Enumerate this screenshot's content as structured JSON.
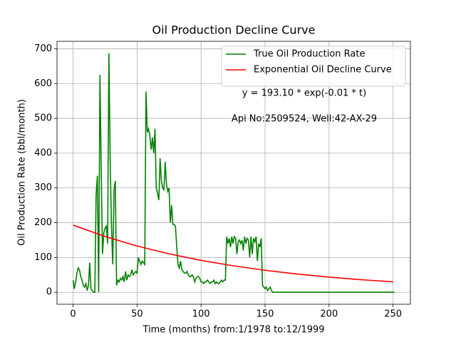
{
  "chart_data": {
    "type": "line",
    "title": "Oil Production Decline Curve",
    "xlabel": "Time (months) from:1/1978 to:12/1999",
    "ylabel": "Oil Production Rate (bbl/month)",
    "annotations": [
      "y = 193.10 * exp(-0.01 * t)",
      "Api No:2509524, Well:42-AX-29"
    ],
    "xlim": [
      -12.55,
      263.55
    ],
    "xticks": [
      0,
      50,
      100,
      150,
      200,
      250
    ],
    "ylim": [
      -34.35,
      721.35
    ],
    "yticks": [
      0,
      100,
      200,
      300,
      400,
      500,
      600,
      700
    ],
    "grid": true,
    "legend": "upper right",
    "series": [
      {
        "name": "True Oil Production Rate",
        "color": "#008000",
        "x": [
          0,
          1,
          2,
          3,
          4,
          5,
          6,
          7,
          8,
          9,
          10,
          11,
          12,
          13,
          14,
          15,
          16,
          17,
          18,
          19,
          20,
          21,
          22,
          23,
          24,
          25,
          26,
          27,
          28,
          29,
          30,
          31,
          32,
          33,
          34,
          35,
          36,
          37,
          38,
          39,
          40,
          41,
          42,
          43,
          44,
          45,
          46,
          47,
          48,
          49,
          50,
          51,
          52,
          53,
          54,
          55,
          56,
          57,
          58,
          59,
          60,
          61,
          62,
          63,
          64,
          65,
          66,
          67,
          68,
          69,
          70,
          71,
          72,
          73,
          74,
          75,
          76,
          77,
          78,
          79,
          80,
          81,
          82,
          83,
          84,
          85,
          86,
          87,
          88,
          89,
          90,
          91,
          92,
          93,
          94,
          95,
          96,
          97,
          98,
          99,
          100,
          101,
          102,
          103,
          104,
          105,
          106,
          107,
          108,
          109,
          110,
          111,
          112,
          113,
          114,
          115,
          116,
          117,
          118,
          119,
          120,
          121,
          122,
          123,
          124,
          125,
          126,
          127,
          128,
          129,
          130,
          131,
          132,
          133,
          134,
          135,
          136,
          137,
          138,
          139,
          140,
          141,
          142,
          143,
          144,
          145,
          146,
          147,
          148,
          149,
          150,
          151,
          152,
          153,
          154,
          155,
          156,
          251
        ],
        "values": [
          35,
          10,
          30,
          55,
          70,
          65,
          45,
          35,
          20,
          15,
          25,
          5,
          20,
          85,
          10,
          5,
          0,
          0,
          280,
          335,
          0,
          625,
          350,
          110,
          170,
          185,
          190,
          140,
          687,
          380,
          190,
          80,
          295,
          320,
          20,
          35,
          30,
          40,
          35,
          45,
          30,
          60,
          35,
          50,
          45,
          50,
          65,
          50,
          55,
          60,
          55,
          100,
          90,
          80,
          90,
          85,
          80,
          577,
          460,
          470,
          450,
          410,
          445,
          400,
          470,
          300,
          285,
          265,
          385,
          320,
          300,
          295,
          375,
          310,
          290,
          300,
          200,
          250,
          195,
          195,
          190,
          130,
          80,
          70,
          90,
          65,
          60,
          55,
          55,
          60,
          50,
          45,
          45,
          50,
          45,
          30,
          40,
          45,
          45,
          40,
          30,
          30,
          25,
          30,
          30,
          35,
          30,
          25,
          30,
          30,
          35,
          25,
          30,
          25,
          25,
          30,
          35,
          30,
          35,
          35,
          160,
          140,
          155,
          130,
          160,
          140,
          160,
          155,
          110,
          145,
          150,
          140,
          150,
          120,
          160,
          140,
          155,
          150,
          100,
          160,
          110,
          155,
          145,
          160,
          90,
          140,
          130,
          155,
          20,
          15,
          10,
          15,
          5,
          10,
          15,
          5,
          0,
          0
        ]
      },
      {
        "name": "Exponential Oil Decline Curve",
        "color": "#ff0000",
        "x": [
          0,
          25,
          50,
          75,
          100,
          125,
          150,
          175,
          200,
          225,
          250
        ],
        "values": [
          193.1,
          160.3,
          133.1,
          110.5,
          91.7,
          76.2,
          63.2,
          52.5,
          43.6,
          36.2,
          30.0
        ]
      }
    ]
  }
}
